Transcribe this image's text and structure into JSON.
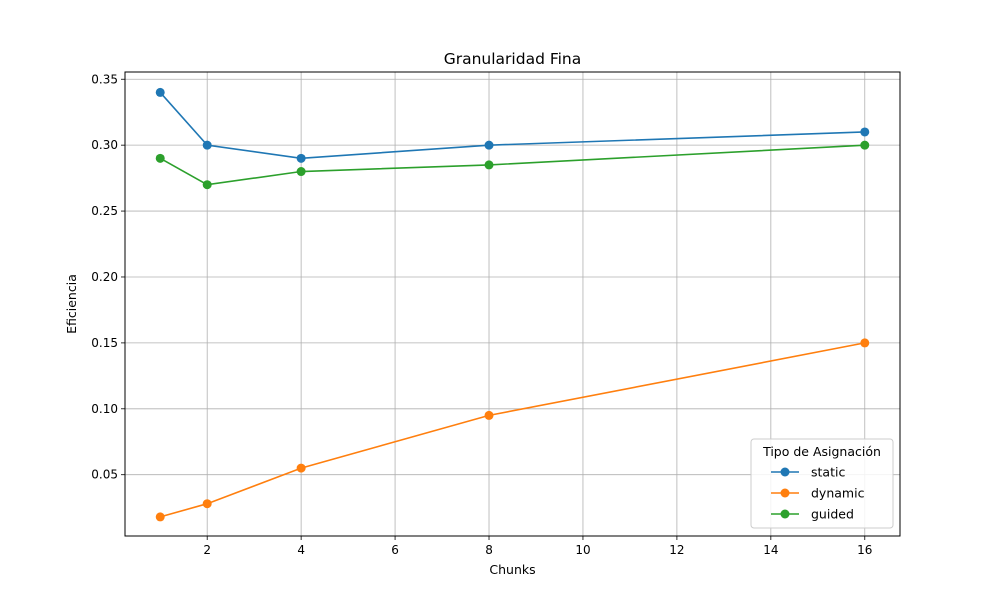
{
  "chart_data": {
    "type": "line",
    "title": "Granularidad Fina",
    "xlabel": "Chunks",
    "ylabel": "Eficiencia",
    "x": [
      1,
      2,
      4,
      8,
      16
    ],
    "xlim": [
      0.25,
      16.75
    ],
    "ylim": [
      0.0035,
      0.3555
    ],
    "xticks": [
      2,
      4,
      6,
      8,
      10,
      12,
      14,
      16
    ],
    "yticks": [
      0.05,
      0.1,
      0.15,
      0.2,
      0.25,
      0.3,
      0.35
    ],
    "grid": true,
    "legend": {
      "title": "Tipo de Asignación",
      "placement": "lower-right"
    },
    "series": [
      {
        "name": "static",
        "color": "#1f77b4",
        "values": [
          0.34,
          0.3,
          0.29,
          0.3,
          0.31
        ]
      },
      {
        "name": "dynamic",
        "color": "#ff7f0e",
        "values": [
          0.018,
          0.028,
          0.055,
          0.095,
          0.15
        ]
      },
      {
        "name": "guided",
        "color": "#2ca02c",
        "values": [
          0.29,
          0.27,
          0.28,
          0.285,
          0.3
        ]
      }
    ]
  }
}
